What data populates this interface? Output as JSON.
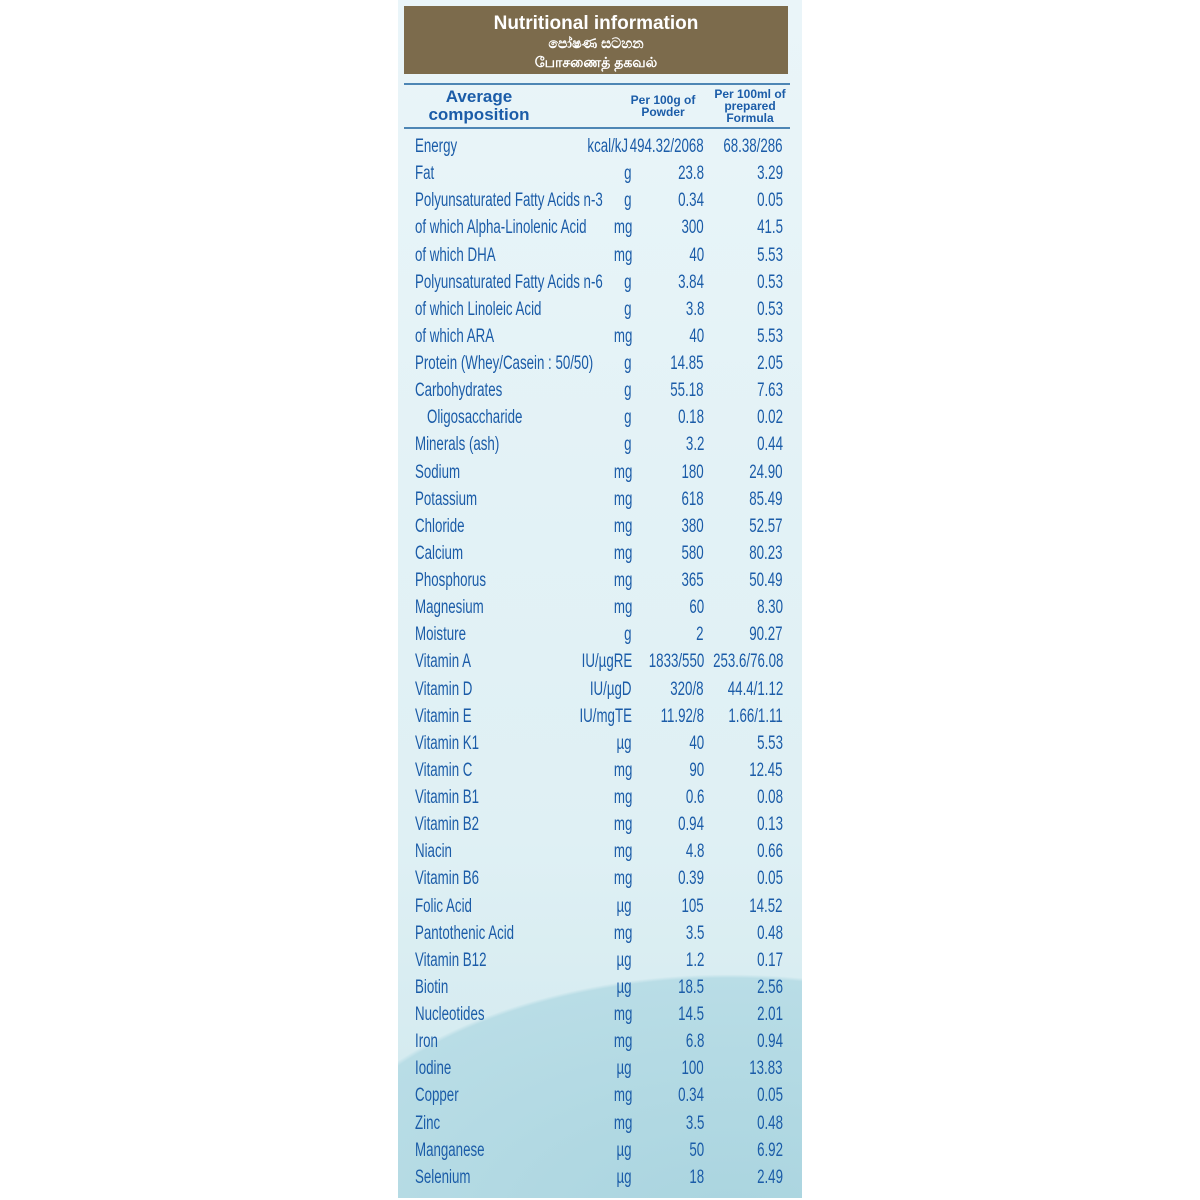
{
  "header": {
    "title_en": "Nutritional information",
    "title_si": "පෝෂණ සටහන",
    "title_ta": "போசணைத் தகவல்"
  },
  "columns": {
    "composition": "Average composition",
    "per_powder": "Per 100g of Powder",
    "per_formula": "Per 100ml of prepared Formula"
  },
  "colors": {
    "title_bg": "#7c6b4c",
    "text": "#1b5ca8",
    "background": "#e3f2f6"
  },
  "rows": [
    {
      "name": "Energy",
      "unit": "kcal/kJ",
      "per100g": "494.32/2068",
      "per100ml": "68.38/286"
    },
    {
      "name": "Fat",
      "unit": "g",
      "per100g": "23.8",
      "per100ml": "3.29"
    },
    {
      "name": "Polyunsaturated Fatty Acids n-3",
      "unit": "g",
      "per100g": "0.34",
      "per100ml": "0.05"
    },
    {
      "name": "of which Alpha-Linolenic Acid",
      "unit": "mg",
      "per100g": "300",
      "per100ml": "41.5"
    },
    {
      "name": "of which DHA",
      "unit": "mg",
      "per100g": "40",
      "per100ml": "5.53"
    },
    {
      "name": "Polyunsaturated Fatty Acids n-6",
      "unit": "g",
      "per100g": "3.84",
      "per100ml": "0.53"
    },
    {
      "name": "of which Linoleic Acid",
      "unit": "g",
      "per100g": "3.8",
      "per100ml": "0.53"
    },
    {
      "name": "of which ARA",
      "unit": "mg",
      "per100g": "40",
      "per100ml": "5.53"
    },
    {
      "name": "Protein (Whey/Casein : 50/50)",
      "unit": "g",
      "per100g": "14.85",
      "per100ml": "2.05"
    },
    {
      "name": "Carbohydrates",
      "unit": "g",
      "per100g": "55.18",
      "per100ml": "7.63"
    },
    {
      "name": "Oligosaccharide",
      "unit": "g",
      "per100g": "0.18",
      "per100ml": "0.02",
      "indent": true
    },
    {
      "name": "Minerals (ash)",
      "unit": "g",
      "per100g": "3.2",
      "per100ml": "0.44"
    },
    {
      "name": "Sodium",
      "unit": "mg",
      "per100g": "180",
      "per100ml": "24.90"
    },
    {
      "name": "Potassium",
      "unit": "mg",
      "per100g": "618",
      "per100ml": "85.49"
    },
    {
      "name": "Chloride",
      "unit": "mg",
      "per100g": "380",
      "per100ml": "52.57"
    },
    {
      "name": "Calcium",
      "unit": "mg",
      "per100g": "580",
      "per100ml": "80.23"
    },
    {
      "name": "Phosphorus",
      "unit": "mg",
      "per100g": "365",
      "per100ml": "50.49"
    },
    {
      "name": "Magnesium",
      "unit": "mg",
      "per100g": "60",
      "per100ml": "8.30"
    },
    {
      "name": "Moisture",
      "unit": "g",
      "per100g": "2",
      "per100ml": "90.27"
    },
    {
      "name": "Vitamin A",
      "unit": "IU/µgRE",
      "per100g": "1833/550",
      "per100ml": "253.6/76.08"
    },
    {
      "name": "Vitamin D",
      "unit": "IU/µgD",
      "per100g": "320/8",
      "per100ml": "44.4/1.12"
    },
    {
      "name": "Vitamin E",
      "unit": "IU/mgTE",
      "per100g": "11.92/8",
      "per100ml": "1.66/1.11"
    },
    {
      "name": "Vitamin K1",
      "unit": "µg",
      "per100g": "40",
      "per100ml": "5.53"
    },
    {
      "name": "Vitamin C",
      "unit": "mg",
      "per100g": "90",
      "per100ml": "12.45"
    },
    {
      "name": "Vitamin B1",
      "unit": "mg",
      "per100g": "0.6",
      "per100ml": "0.08"
    },
    {
      "name": "Vitamin B2",
      "unit": "mg",
      "per100g": "0.94",
      "per100ml": "0.13"
    },
    {
      "name": "Niacin",
      "unit": "mg",
      "per100g": "4.8",
      "per100ml": "0.66"
    },
    {
      "name": "Vitamin B6",
      "unit": "mg",
      "per100g": "0.39",
      "per100ml": "0.05"
    },
    {
      "name": "Folic Acid",
      "unit": "µg",
      "per100g": "105",
      "per100ml": "14.52"
    },
    {
      "name": "Pantothenic Acid",
      "unit": "mg",
      "per100g": "3.5",
      "per100ml": "0.48"
    },
    {
      "name": "Vitamin B12",
      "unit": "µg",
      "per100g": "1.2",
      "per100ml": "0.17"
    },
    {
      "name": "Biotin",
      "unit": "µg",
      "per100g": "18.5",
      "per100ml": "2.56"
    },
    {
      "name": "Nucleotides",
      "unit": "mg",
      "per100g": "14.5",
      "per100ml": "2.01"
    },
    {
      "name": "Iron",
      "unit": "mg",
      "per100g": "6.8",
      "per100ml": "0.94"
    },
    {
      "name": "Iodine",
      "unit": "µg",
      "per100g": "100",
      "per100ml": "13.83"
    },
    {
      "name": "Copper",
      "unit": "mg",
      "per100g": "0.34",
      "per100ml": "0.05"
    },
    {
      "name": "Zinc",
      "unit": "mg",
      "per100g": "3.5",
      "per100ml": "0.48"
    },
    {
      "name": "Manganese",
      "unit": "µg",
      "per100g": "50",
      "per100ml": "6.92"
    },
    {
      "name": "Selenium",
      "unit": "µg",
      "per100g": "18",
      "per100ml": "2.49"
    }
  ]
}
